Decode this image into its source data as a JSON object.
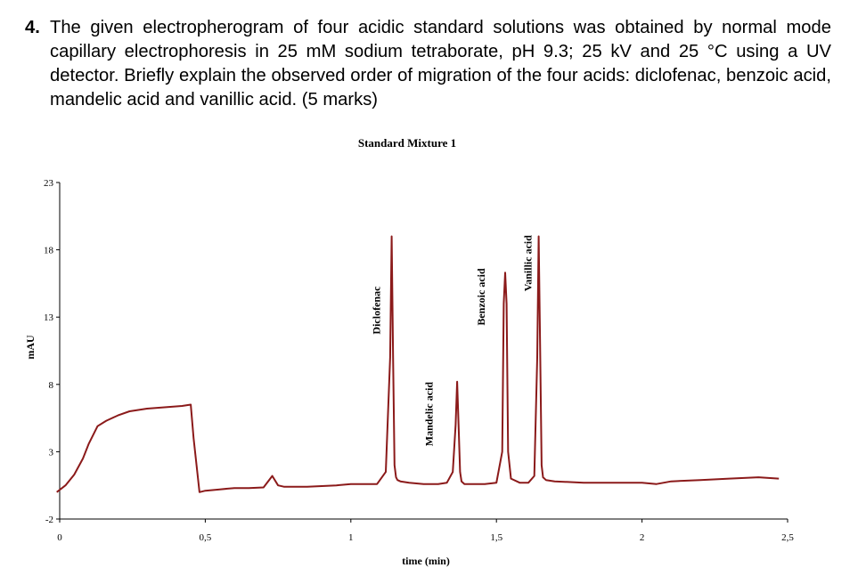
{
  "question": {
    "number": "4.",
    "text": "The given electropherogram of four acidic standard solutions was obtained by normal mode capillary electrophoresis in 25 mM sodium tetraborate, pH 9.3; 25 kV and 25 °C using a UV detector. Briefly explain the observed order of migration of the four acids: diclofenac, benzoic acid, mandelic acid and vanillic acid. (5 marks)"
  },
  "chart_data": {
    "type": "line",
    "title": "Standard Mixture 1",
    "xlabel": "time (min)",
    "ylabel": "mAU",
    "xlim": [
      0,
      2.5
    ],
    "ylim": [
      -2,
      23
    ],
    "x_ticks": [
      0,
      0.5,
      1,
      1.5,
      2,
      2.5
    ],
    "x_tick_labels": [
      "0",
      "0,5",
      "1",
      "1,5",
      "2",
      "2,5"
    ],
    "y_ticks": [
      -2,
      3,
      8,
      13,
      18,
      23
    ],
    "y_tick_labels": [
      "-2",
      "3",
      "8",
      "13",
      "18",
      "23"
    ],
    "grid": false,
    "line_color": "#8B1A1A",
    "series": [
      {
        "x": [
          -0.01,
          0.02,
          0.05,
          0.08,
          0.1,
          0.13,
          0.16,
          0.18,
          0.2,
          0.24,
          0.3,
          0.36,
          0.42,
          0.45,
          0.46,
          0.48,
          0.5,
          0.55,
          0.6,
          0.65,
          0.7,
          0.73,
          0.75,
          0.77,
          0.8,
          0.85,
          0.9,
          0.95,
          1.0,
          1.05,
          1.09,
          1.12,
          1.135,
          1.14,
          1.145,
          1.15,
          1.155,
          1.16,
          1.17,
          1.2,
          1.25,
          1.3,
          1.33,
          1.35,
          1.36,
          1.365,
          1.37,
          1.375,
          1.38,
          1.39,
          1.42,
          1.46,
          1.5,
          1.52,
          1.525,
          1.53,
          1.535,
          1.54,
          1.55,
          1.58,
          1.61,
          1.63,
          1.64,
          1.645,
          1.65,
          1.655,
          1.66,
          1.67,
          1.7,
          1.8,
          1.9,
          2.0,
          2.05,
          2.1,
          2.2,
          2.3,
          2.4,
          2.47
        ],
        "y": [
          0.0,
          0.5,
          1.3,
          2.5,
          3.6,
          4.9,
          5.3,
          5.5,
          5.7,
          6.0,
          6.2,
          6.3,
          6.4,
          6.5,
          4.0,
          0.0,
          0.1,
          0.2,
          0.3,
          0.3,
          0.35,
          1.2,
          0.5,
          0.4,
          0.4,
          0.4,
          0.45,
          0.5,
          0.6,
          0.6,
          0.6,
          1.5,
          10.0,
          19.0,
          10.0,
          2.0,
          1.1,
          0.9,
          0.8,
          0.7,
          0.6,
          0.6,
          0.7,
          1.5,
          5.0,
          8.2,
          5.0,
          1.5,
          0.8,
          0.6,
          0.6,
          0.6,
          0.7,
          3.0,
          14.0,
          16.3,
          14.0,
          3.0,
          1.0,
          0.7,
          0.7,
          1.2,
          10.0,
          19.0,
          11.0,
          2.0,
          1.1,
          0.9,
          0.8,
          0.7,
          0.7,
          0.7,
          0.6,
          0.8,
          0.9,
          1.0,
          1.1,
          1.0
        ]
      }
    ],
    "annotations": [
      {
        "text": "Diclofenac",
        "x": 1.1,
        "y": 13.5
      },
      {
        "text": "Mandelic acid",
        "x": 1.28,
        "y": 5.8
      },
      {
        "text": "Benzoic acid",
        "x": 1.46,
        "y": 14.5
      },
      {
        "text": "Vanillic acid",
        "x": 1.62,
        "y": 17.0
      }
    ]
  }
}
